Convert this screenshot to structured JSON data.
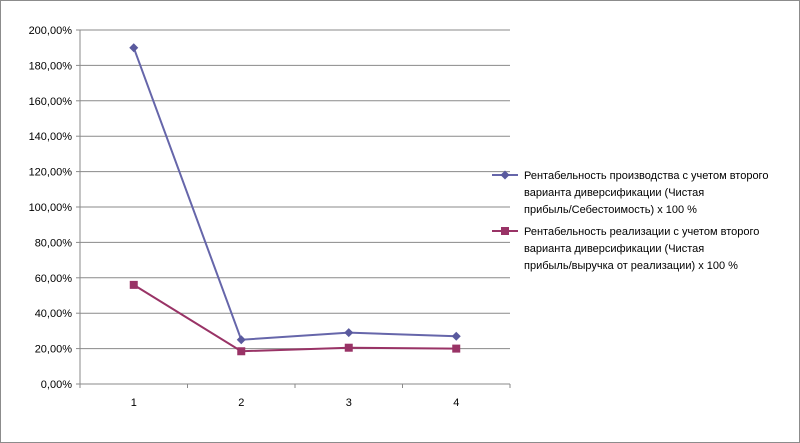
{
  "chart_data": {
    "type": "line",
    "categories": [
      "1",
      "2",
      "3",
      "4"
    ],
    "ylim": [
      0,
      200
    ],
    "ytick_step": 20,
    "ytick_labels": [
      "0,00%",
      "20,00%",
      "40,00%",
      "60,00%",
      "80,00%",
      "100,00%",
      "120,00%",
      "140,00%",
      "160,00%",
      "180,00%",
      "200,00%"
    ],
    "grid": true,
    "legend_position": "right",
    "series": [
      {
        "name": "Рентабельность производства с учетом второго варианта диверсификации (Чистая прибыль/Себестоимость) х 100 %",
        "legend_lines": [
          "Рентабельность производства с учетом второго",
          "варианта диверсификации (Чистая",
          "прибыль/Себестоимость) х 100 %"
        ],
        "values": [
          190,
          25,
          29,
          27
        ],
        "color": "#6666aa",
        "marker_color": "#5a5a9e",
        "marker": "diamond"
      },
      {
        "name": "Рентабельность реализации с учетом второго варианта диверсификации (Чистая прибыль/выручка от реализации) х 100 %",
        "legend_lines": [
          "Рентабельность реализации с учетом второго",
          "варианта диверсификации (Чистая",
          "прибыль/выручка от реализации) х 100 %"
        ],
        "values": [
          56,
          18.5,
          20.5,
          20
        ],
        "color": "#993366",
        "marker_color": "#993366",
        "marker": "square"
      }
    ]
  }
}
